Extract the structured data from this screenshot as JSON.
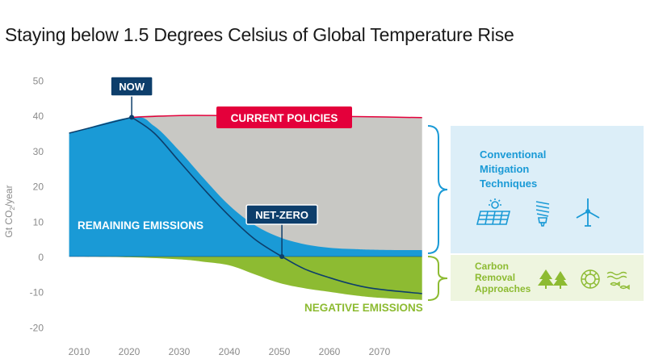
{
  "colors": {
    "remaining": "#1a9ad6",
    "current_policies_area": "#c8c8c4",
    "negative": "#8dbb32",
    "current_policies_line": "#e4003b",
    "label_box": "#0d3e6b",
    "accent_blue": "#1a9ad6",
    "accent_green": "#8dbb32",
    "mitigation_panel": "#dceef8",
    "removal_panel": "#eef5df",
    "axis_text": "#8a8a8a"
  },
  "chart_data": {
    "type": "area",
    "title": "Staying below 1.5 Degrees Celsius of Global Temperature Rise",
    "ylabel": "Gt CO2/year",
    "xlabel": "",
    "xlim": [
      2005,
      2079
    ],
    "ylim": [
      -22,
      52
    ],
    "x_ticks": [
      2010,
      2020,
      2030,
      2040,
      2050,
      2060,
      2070
    ],
    "y_ticks": [
      50,
      40,
      30,
      20,
      10,
      0,
      -10,
      -20
    ],
    "grid": false,
    "series": [
      {
        "name": "CURRENT POLICIES",
        "x": [
          2008,
          2020.5,
          2030,
          2040,
          2050,
          2060,
          2070,
          2078.5
        ],
        "values": [
          35,
          39.5,
          40,
          40,
          40,
          39.8,
          39.6,
          39.4
        ]
      },
      {
        "name": "REMAINING EMISSIONS",
        "x": [
          2008,
          2020.5,
          2025,
          2030,
          2035,
          2040,
          2045,
          2050,
          2055,
          2060,
          2065,
          2070,
          2078.5
        ],
        "values": [
          35,
          39.5,
          37,
          30,
          22,
          14.5,
          9,
          5.5,
          3.5,
          2.5,
          2.1,
          1.9,
          1.8
        ]
      },
      {
        "name": "NEGATIVE EMISSIONS",
        "x": [
          2008,
          2020,
          2030,
          2035,
          2040,
          2045,
          2050,
          2055,
          2060,
          2065,
          2070,
          2078.5
        ],
        "values": [
          0,
          -0.2,
          -0.8,
          -1.5,
          -2.5,
          -5,
          -7.5,
          -9,
          -10,
          -11,
          -11.7,
          -12.3
        ]
      },
      {
        "name": "Net emissions",
        "x": [
          2020.5,
          2025,
          2030,
          2035,
          2040,
          2045,
          2050.5,
          2055,
          2060,
          2065,
          2070,
          2078.5
        ],
        "values": [
          39.5,
          35,
          27,
          19,
          11.5,
          5,
          0,
          -3.5,
          -6,
          -8,
          -9.3,
          -10.5
        ]
      }
    ],
    "annotations": {
      "now": {
        "label": "NOW",
        "x": 2020.5,
        "y": 39.5
      },
      "net_zero": {
        "label": "NET-ZERO",
        "x": 2050.5,
        "y": 0
      },
      "current_policies": "CURRENT POLICIES",
      "remaining_emissions": "REMAINING EMISSIONS",
      "negative_emissions": "NEGATIVE EMISSIONS"
    }
  },
  "legend_panels": {
    "mitigation": {
      "title_lines": [
        "Conventional",
        "Mitigation",
        "Techniques"
      ],
      "icons": [
        "solar-panel-icon",
        "light-bulb-icon",
        "wind-turbine-icon"
      ]
    },
    "removal": {
      "title_lines": [
        "Carbon",
        "Removal",
        "Approaches"
      ],
      "icons": [
        "trees-icon",
        "mineral-icon",
        "ocean-fish-icon"
      ]
    }
  }
}
